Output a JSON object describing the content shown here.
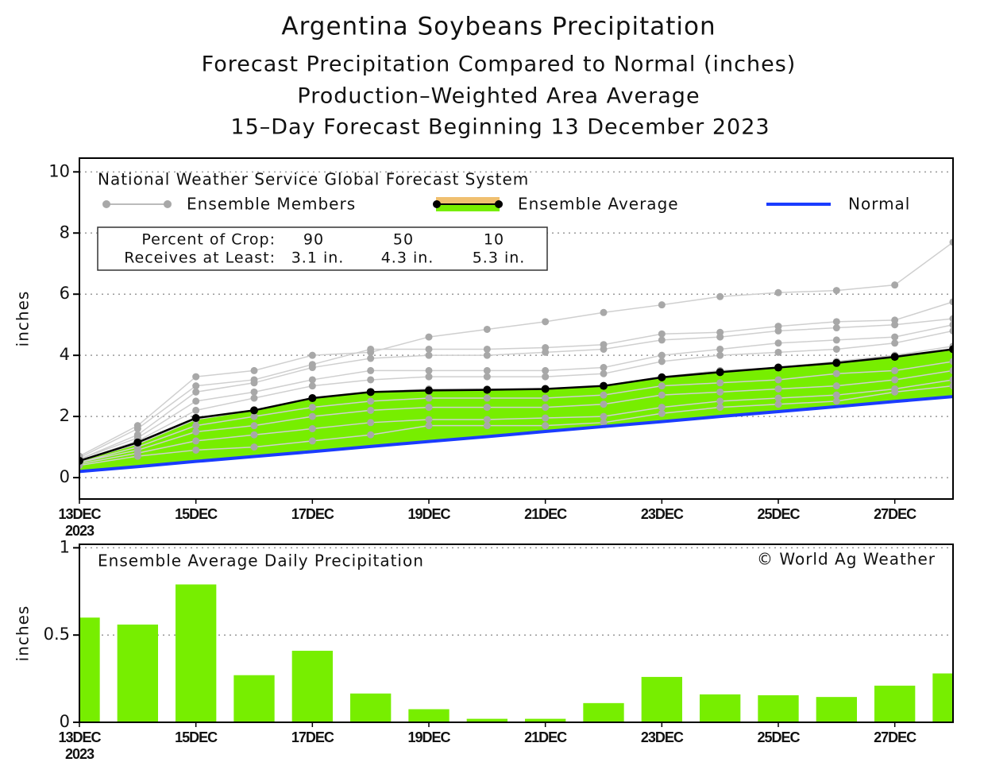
{
  "chart_data": [
    {
      "type": "line",
      "title": "Argentina Soybeans Precipitation",
      "subtitle": [
        "Forecast Precipitation Compared to Normal (inches)",
        "Production–Weighted Area Average",
        "15–Day Forecast Beginning 13 December 2023"
      ],
      "legend_title": "National Weather Service Global Forecast System",
      "y_label": "inches",
      "categories": [
        "13DEC",
        null,
        "15DEC",
        null,
        "17DEC",
        null,
        "19DEC",
        null,
        "21DEC",
        null,
        "23DEC",
        null,
        "25DEC",
        null,
        "27DEC",
        null
      ],
      "year_label": "2023",
      "ylim": [
        -0.7,
        10.45
      ],
      "yticks": [
        0,
        2,
        4,
        6,
        8,
        10
      ],
      "grid": true,
      "fill_color": "#77ee00",
      "series": [
        {
          "name": "Ensemble Members",
          "color": "#a8a8a8",
          "members": [
            [
              0.7,
              1.7,
              3.3,
              3.5,
              4.0,
              4.1,
              4.6,
              4.85,
              5.1,
              5.4,
              5.65,
              5.92,
              6.05,
              6.12,
              6.3,
              7.7
            ],
            [
              0.65,
              1.6,
              3.0,
              3.2,
              3.7,
              4.2,
              4.2,
              4.2,
              4.25,
              4.35,
              4.7,
              4.75,
              4.95,
              5.1,
              5.15,
              5.75
            ],
            [
              0.6,
              1.4,
              2.8,
              3.1,
              3.6,
              3.9,
              4.0,
              4.0,
              4.1,
              4.2,
              4.5,
              4.6,
              4.8,
              4.9,
              5.0,
              5.2
            ],
            [
              0.6,
              1.3,
              2.5,
              2.8,
              3.2,
              3.5,
              3.5,
              3.5,
              3.5,
              3.6,
              4.0,
              4.2,
              4.4,
              4.5,
              4.6,
              5.0
            ],
            [
              0.55,
              1.2,
              2.2,
              2.6,
              3.0,
              3.2,
              3.3,
              3.3,
              3.3,
              3.4,
              3.8,
              4.0,
              4.1,
              4.2,
              4.4,
              4.8
            ],
            [
              0.55,
              1.1,
              1.9,
              2.2,
              2.6,
              2.8,
              2.9,
              2.9,
              2.9,
              3.0,
              3.3,
              3.5,
              3.6,
              3.8,
              4.0,
              4.3
            ],
            [
              0.5,
              1.0,
              1.7,
              2.0,
              2.3,
              2.5,
              2.6,
              2.6,
              2.6,
              2.7,
              3.0,
              3.1,
              3.2,
              3.4,
              3.5,
              3.8
            ],
            [
              0.5,
              0.9,
              1.5,
              1.7,
              2.0,
              2.2,
              2.3,
              2.3,
              2.3,
              2.4,
              2.7,
              2.8,
              2.9,
              3.0,
              3.2,
              3.5
            ],
            [
              0.45,
              0.8,
              1.2,
              1.4,
              1.6,
              1.8,
              1.9,
              1.9,
              1.95,
              2.0,
              2.3,
              2.5,
              2.6,
              2.7,
              2.9,
              3.2
            ],
            [
              0.4,
              0.7,
              0.9,
              1.0,
              1.2,
              1.4,
              1.7,
              1.7,
              1.7,
              1.8,
              2.1,
              2.3,
              2.4,
              2.5,
              2.8,
              3.0
            ]
          ]
        },
        {
          "name": "Ensemble Average",
          "color": "#000000",
          "values": [
            0.55,
            1.15,
            1.95,
            2.2,
            2.6,
            2.8,
            2.85,
            2.87,
            2.9,
            3.0,
            3.28,
            3.45,
            3.6,
            3.75,
            3.95,
            4.2
          ]
        },
        {
          "name": "Normal",
          "color": "#1a3cff",
          "values": [
            0.2,
            0.36,
            0.53,
            0.69,
            0.85,
            1.02,
            1.18,
            1.34,
            1.51,
            1.67,
            1.83,
            2.0,
            2.16,
            2.32,
            2.49,
            2.65
          ]
        }
      ],
      "crop_table": {
        "rows": [
          [
            "Percent of Crop:",
            "90",
            "50",
            "10"
          ],
          [
            "Receives at Least:",
            "3.1 in.",
            "4.3 in.",
            "5.3 in."
          ]
        ]
      }
    },
    {
      "type": "bar",
      "title": "Ensemble Average Daily Precipitation",
      "credit": "© World Ag Weather",
      "y_label": "inches",
      "categories": [
        "13DEC",
        null,
        "15DEC",
        null,
        "17DEC",
        null,
        "19DEC",
        null,
        "21DEC",
        null,
        "23DEC",
        null,
        "25DEC",
        null,
        "27DEC",
        null
      ],
      "year_label": "2023",
      "ylim": [
        0,
        1.02
      ],
      "yticks": [
        0,
        0.5,
        1
      ],
      "grid": true,
      "color": "#77ee00",
      "values": [
        0.6,
        0.56,
        0.79,
        0.27,
        0.41,
        0.165,
        0.075,
        0.02,
        0.02,
        0.11,
        0.26,
        0.16,
        0.155,
        0.145,
        0.21,
        0.28
      ]
    }
  ]
}
